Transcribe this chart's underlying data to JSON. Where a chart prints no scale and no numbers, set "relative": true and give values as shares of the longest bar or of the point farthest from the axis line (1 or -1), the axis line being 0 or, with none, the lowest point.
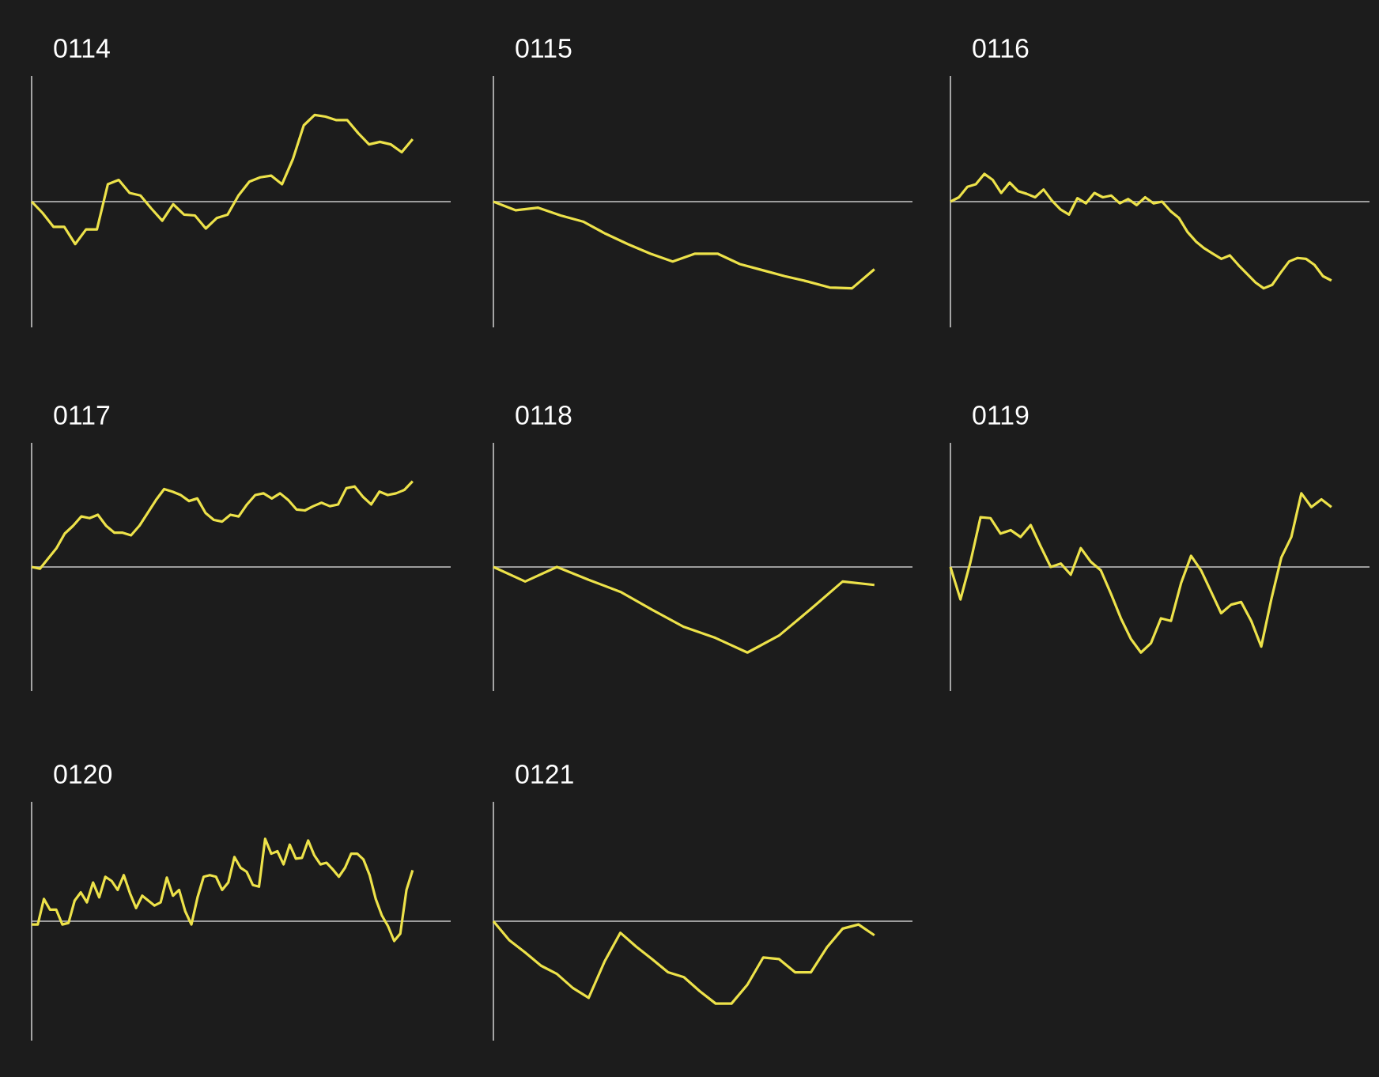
{
  "chart_data": [
    {
      "type": "line",
      "title": "0114",
      "relative": true,
      "color": "#ede24a",
      "categories": [
        null,
        null,
        null,
        null,
        null,
        null,
        null,
        null,
        null,
        null,
        null,
        null,
        null,
        null,
        null,
        null,
        null,
        null,
        null,
        null,
        null,
        null,
        null,
        null,
        null,
        null,
        null,
        null,
        null,
        null,
        null,
        null,
        null,
        null,
        null,
        null
      ],
      "values": [
        0,
        -0.13,
        -0.29,
        -0.29,
        -0.49,
        -0.32,
        -0.32,
        0.2,
        0.25,
        0.1,
        0.07,
        -0.08,
        -0.22,
        -0.03,
        -0.15,
        -0.16,
        -0.31,
        -0.19,
        -0.15,
        0.07,
        0.23,
        0.28,
        0.3,
        0.2,
        0.49,
        0.88,
        1.0,
        0.98,
        0.94,
        0.94,
        0.79,
        0.66,
        0.69,
        0.66,
        0.57,
        0.72
      ]
    },
    {
      "type": "line",
      "title": "0115",
      "relative": true,
      "color": "#ede24a",
      "categories": [
        null,
        null,
        null,
        null,
        null,
        null,
        null,
        null,
        null,
        null,
        null,
        null,
        null,
        null,
        null,
        null,
        null,
        null
      ],
      "values": [
        0,
        -0.1,
        -0.07,
        -0.16,
        -0.23,
        -0.37,
        -0.49,
        -0.6,
        -0.69,
        -0.6,
        -0.6,
        -0.72,
        -0.79,
        -0.86,
        -0.92,
        -0.99,
        -1.0,
        -0.78
      ]
    },
    {
      "type": "line",
      "title": "0116",
      "relative": true,
      "color": "#ede24a",
      "categories": [
        null,
        null,
        null,
        null,
        null,
        null,
        null,
        null,
        null,
        null,
        null,
        null,
        null,
        null,
        null,
        null,
        null,
        null,
        null,
        null,
        null,
        null,
        null,
        null,
        null,
        null,
        null,
        null,
        null,
        null,
        null,
        null,
        null,
        null,
        null,
        null,
        null,
        null,
        null,
        null,
        null,
        null,
        null,
        null,
        null,
        null
      ],
      "values": [
        0,
        0.05,
        0.17,
        0.2,
        0.32,
        0.25,
        0.1,
        0.22,
        0.12,
        0.09,
        0.05,
        0.14,
        0.01,
        -0.09,
        -0.15,
        0.04,
        -0.02,
        0.1,
        0.05,
        0.07,
        -0.02,
        0.03,
        -0.04,
        0.05,
        -0.02,
        0,
        -0.11,
        -0.19,
        -0.35,
        -0.46,
        -0.54,
        -0.6,
        -0.66,
        -0.62,
        -0.73,
        -0.83,
        -0.93,
        -1.0,
        -0.96,
        -0.82,
        -0.69,
        -0.65,
        -0.66,
        -0.73,
        -0.86,
        -0.91
      ]
    },
    {
      "type": "line",
      "title": "0117",
      "relative": true,
      "color": "#ede24a",
      "categories": [
        null,
        null,
        null,
        null,
        null,
        null,
        null,
        null,
        null,
        null,
        null,
        null,
        null,
        null,
        null,
        null,
        null,
        null,
        null,
        null,
        null,
        null,
        null,
        null,
        null,
        null,
        null,
        null,
        null,
        null,
        null,
        null,
        null,
        null,
        null,
        null,
        null,
        null,
        null,
        null,
        null,
        null,
        null,
        null,
        null,
        null,
        null
      ],
      "values": [
        0,
        -0.02,
        0.1,
        0.22,
        0.39,
        0.48,
        0.59,
        0.57,
        0.61,
        0.48,
        0.4,
        0.4,
        0.37,
        0.48,
        0.63,
        0.78,
        0.91,
        0.88,
        0.84,
        0.77,
        0.8,
        0.63,
        0.55,
        0.53,
        0.61,
        0.59,
        0.73,
        0.84,
        0.86,
        0.8,
        0.86,
        0.78,
        0.67,
        0.66,
        0.71,
        0.75,
        0.71,
        0.73,
        0.92,
        0.94,
        0.82,
        0.73,
        0.88,
        0.84,
        0.86,
        0.9,
        1.0
      ]
    },
    {
      "type": "line",
      "title": "0118",
      "relative": true,
      "color": "#ede24a",
      "categories": [
        null,
        null,
        null,
        null,
        null,
        null,
        null,
        null,
        null,
        null,
        null,
        null,
        null
      ],
      "values": [
        0,
        -0.17,
        0,
        -0.15,
        -0.29,
        -0.5,
        -0.7,
        -0.83,
        -1.0,
        -0.8,
        -0.49,
        -0.17,
        -0.21
      ]
    },
    {
      "type": "line",
      "title": "0119",
      "relative": true,
      "color": "#ede24a",
      "categories": [
        null,
        null,
        null,
        null,
        null,
        null,
        null,
        null,
        null,
        null,
        null,
        null,
        null,
        null,
        null,
        null,
        null,
        null,
        null,
        null,
        null,
        null,
        null,
        null,
        null,
        null,
        null,
        null,
        null,
        null,
        null,
        null,
        null,
        null,
        null,
        null,
        null,
        null,
        null
      ],
      "values": [
        0,
        -0.38,
        0.06,
        0.58,
        0.57,
        0.39,
        0.43,
        0.35,
        0.49,
        0.24,
        0,
        0.04,
        -0.09,
        0.22,
        0.06,
        -0.04,
        -0.31,
        -0.6,
        -0.84,
        -1.0,
        -0.89,
        -0.6,
        -0.63,
        -0.19,
        0.13,
        -0.04,
        -0.29,
        -0.54,
        -0.44,
        -0.41,
        -0.63,
        -0.93,
        -0.38,
        0.11,
        0.35,
        0.86,
        0.7,
        0.79,
        0.7
      ]
    },
    {
      "type": "line",
      "title": "0120",
      "relative": true,
      "color": "#ede24a",
      "categories": [
        null,
        null,
        null,
        null,
        null,
        null,
        null,
        null,
        null,
        null,
        null,
        null,
        null,
        null,
        null,
        null,
        null,
        null,
        null,
        null,
        null,
        null,
        null,
        null,
        null,
        null,
        null,
        null,
        null,
        null,
        null,
        null,
        null,
        null,
        null,
        null,
        null,
        null,
        null,
        null,
        null,
        null,
        null,
        null,
        null,
        null,
        null,
        null,
        null,
        null,
        null,
        null,
        null,
        null,
        null,
        null,
        null,
        null,
        null,
        null,
        null,
        null,
        null
      ],
      "values": [
        -0.04,
        -0.04,
        0.27,
        0.14,
        0.14,
        -0.04,
        -0.02,
        0.25,
        0.35,
        0.23,
        0.47,
        0.29,
        0.54,
        0.49,
        0.38,
        0.56,
        0.34,
        0.16,
        0.31,
        0.25,
        0.19,
        0.23,
        0.53,
        0.31,
        0.38,
        0.12,
        -0.04,
        0.29,
        0.54,
        0.56,
        0.54,
        0.38,
        0.47,
        0.78,
        0.65,
        0.6,
        0.44,
        0.42,
        1.0,
        0.82,
        0.85,
        0.69,
        0.93,
        0.76,
        0.77,
        0.98,
        0.8,
        0.69,
        0.71,
        0.63,
        0.54,
        0.65,
        0.82,
        0.82,
        0.75,
        0.56,
        0.27,
        0.07,
        -0.06,
        -0.24,
        -0.15,
        0.38,
        0.62
      ]
    },
    {
      "type": "line",
      "title": "0121",
      "relative": true,
      "color": "#ede24a",
      "categories": [
        null,
        null,
        null,
        null,
        null,
        null,
        null,
        null,
        null,
        null,
        null,
        null,
        null,
        null,
        null,
        null,
        null,
        null,
        null,
        null,
        null,
        null,
        null,
        null,
        null
      ],
      "values": [
        0,
        -0.23,
        -0.38,
        -0.54,
        -0.64,
        -0.81,
        -0.93,
        -0.49,
        -0.14,
        -0.31,
        -0.46,
        -0.62,
        -0.68,
        -0.85,
        -1.0,
        -1.0,
        -0.77,
        -0.44,
        -0.46,
        -0.62,
        -0.62,
        -0.32,
        -0.09,
        -0.04,
        -0.17
      ]
    }
  ]
}
